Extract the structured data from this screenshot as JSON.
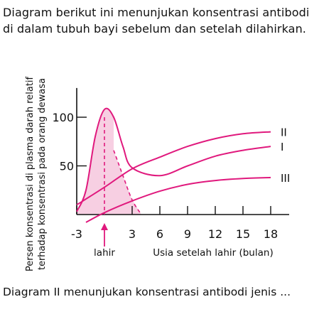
{
  "intro_text": "Diagram berikut ini menunjukan konsentrasi antibodi di dalam tubuh bayi sebelum dan setelah dilahirkan.",
  "question_text": "Diagram II menunjukan konsentrasi antibodi jenis ...",
  "chart_data": {
    "type": "line",
    "ylabel_lines": [
      "Persen konsentrasi di plasma darah relatif",
      "terhadap konsentrasi pada orang dewasa"
    ],
    "xlabel": "Usia setelah lahir (bulan)",
    "birth_label": "lahir",
    "x_ticks": [
      -3,
      0,
      3,
      6,
      9,
      12,
      15,
      18
    ],
    "x_tick_labels": [
      "-3",
      "3",
      "6",
      "9",
      "12",
      "15",
      "18"
    ],
    "y_ticks": [
      50,
      100
    ],
    "y_tick_labels": [
      "50",
      "100"
    ],
    "xlim": [
      -3,
      20
    ],
    "ylim": [
      0,
      130
    ],
    "grid": false,
    "colors": {
      "curve": "#e0197d",
      "fill": "#f7cfe2",
      "axis": "#111111"
    },
    "series": [
      {
        "name": "I",
        "x": [
          -3,
          -2,
          -1,
          0,
          1,
          2,
          3,
          6,
          9,
          12,
          15,
          18
        ],
        "y": [
          3,
          25,
          80,
          108,
          100,
          70,
          48,
          40,
          50,
          60,
          66,
          70
        ]
      },
      {
        "name": "II",
        "x": [
          -3,
          0,
          3,
          6,
          9,
          12,
          15,
          18
        ],
        "y": [
          10,
          28,
          47,
          59,
          70,
          78,
          83,
          85
        ]
      },
      {
        "name": "III",
        "x": [
          -2,
          0,
          3,
          6,
          9,
          12,
          15,
          18
        ],
        "y": [
          -8,
          2,
          14,
          24,
          31,
          35,
          37,
          38
        ]
      }
    ],
    "maternal_decline": {
      "x": [
        1,
        2,
        3,
        4
      ],
      "y": [
        66,
        40,
        15,
        0
      ]
    },
    "peak_marker": {
      "x": 0,
      "y_from": 0,
      "y_to": 100
    }
  }
}
